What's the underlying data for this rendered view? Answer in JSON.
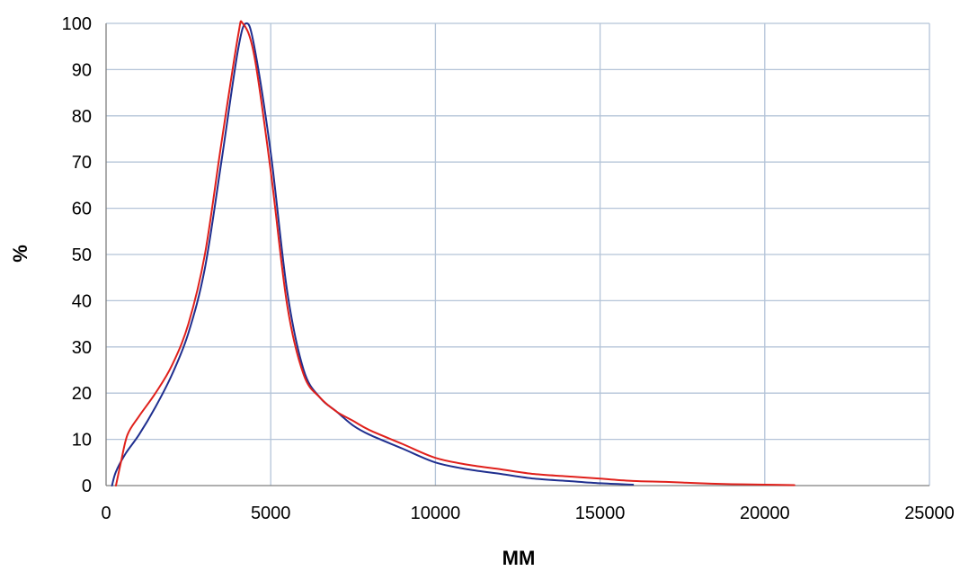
{
  "chart_data": {
    "type": "line",
    "title": "",
    "xlabel": "MM",
    "ylabel": "%",
    "xlim": [
      0,
      25000
    ],
    "ylim": [
      0,
      100
    ],
    "x_ticks": [
      "0",
      "5000",
      "10000",
      "15000",
      "20000",
      "25000"
    ],
    "y_ticks": [
      "0",
      "10",
      "20",
      "30",
      "40",
      "50",
      "60",
      "70",
      "80",
      "90",
      "100"
    ],
    "grid": true,
    "legend": "none",
    "series": [
      {
        "color": "#1f2f8f",
        "points": [
          [
            180,
            0
          ],
          [
            300,
            3
          ],
          [
            600,
            7
          ],
          [
            1000,
            11
          ],
          [
            1500,
            17
          ],
          [
            2000,
            24
          ],
          [
            2500,
            33
          ],
          [
            3000,
            47
          ],
          [
            3500,
            70
          ],
          [
            4000,
            94
          ],
          [
            4250,
            100
          ],
          [
            4500,
            95
          ],
          [
            5000,
            72
          ],
          [
            5500,
            42
          ],
          [
            6000,
            25
          ],
          [
            6500,
            19
          ],
          [
            7000,
            16
          ],
          [
            7500,
            13
          ],
          [
            8000,
            11
          ],
          [
            9000,
            8
          ],
          [
            10000,
            5
          ],
          [
            11000,
            3.5
          ],
          [
            12000,
            2.5
          ],
          [
            13000,
            1.5
          ],
          [
            14000,
            1
          ],
          [
            15000,
            0.5
          ],
          [
            16000,
            0.2
          ]
        ]
      },
      {
        "color": "#e0201b",
        "points": [
          [
            300,
            0
          ],
          [
            450,
            5
          ],
          [
            650,
            11
          ],
          [
            1000,
            15
          ],
          [
            1500,
            20
          ],
          [
            2000,
            26
          ],
          [
            2500,
            35
          ],
          [
            3000,
            50
          ],
          [
            3500,
            74
          ],
          [
            4000,
            97
          ],
          [
            4150,
            100
          ],
          [
            4500,
            93
          ],
          [
            5000,
            68
          ],
          [
            5500,
            39
          ],
          [
            6000,
            24
          ],
          [
            6500,
            19
          ],
          [
            7000,
            16
          ],
          [
            7500,
            14
          ],
          [
            8000,
            12
          ],
          [
            9000,
            9
          ],
          [
            10000,
            6
          ],
          [
            11000,
            4.5
          ],
          [
            12000,
            3.5
          ],
          [
            13000,
            2.5
          ],
          [
            14000,
            2
          ],
          [
            15000,
            1.5
          ],
          [
            16000,
            1
          ],
          [
            17000,
            0.8
          ],
          [
            18000,
            0.5
          ],
          [
            19000,
            0.3
          ],
          [
            20000,
            0.2
          ],
          [
            20900,
            0.1
          ]
        ]
      }
    ]
  }
}
